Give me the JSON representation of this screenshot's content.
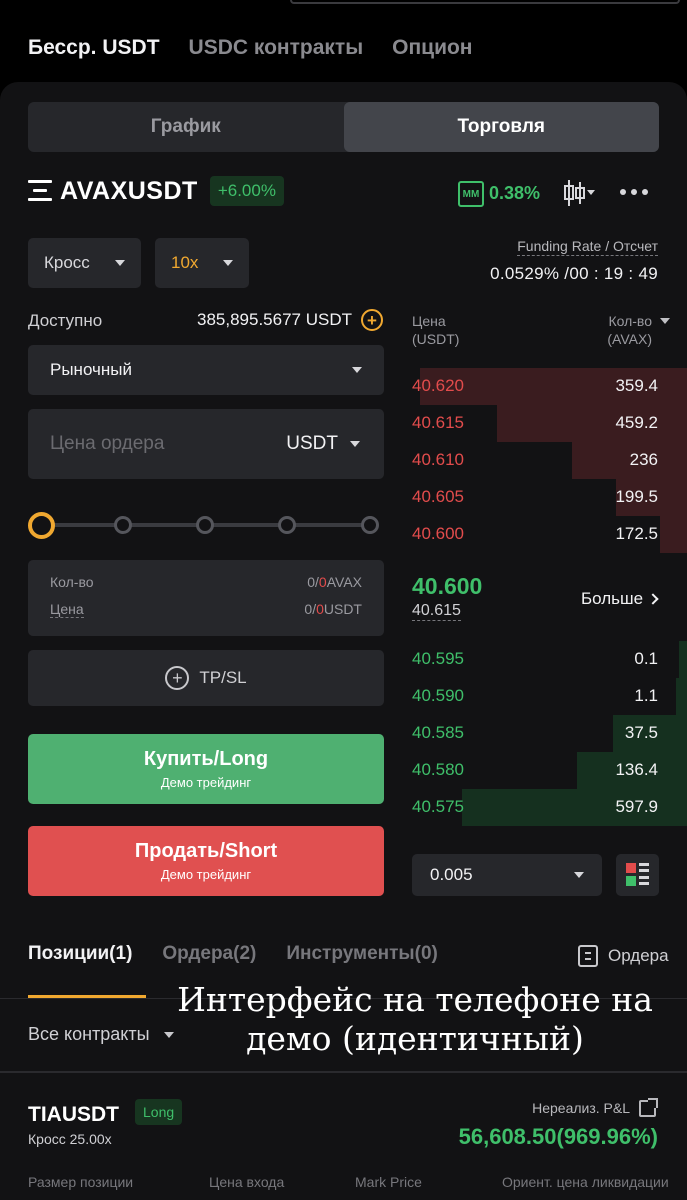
{
  "top_tabs": [
    {
      "label": "Бесср. USDT",
      "active": true
    },
    {
      "label": "USDC контракты",
      "active": false
    },
    {
      "label": "Опцион",
      "active": false
    }
  ],
  "segment": {
    "chart": "График",
    "trade": "Торговля"
  },
  "symbol": {
    "name": "AVAXUSDT",
    "change": "+6.00%"
  },
  "mm": {
    "label": "MM",
    "value": "0.38%"
  },
  "margin_mode": "Кросс",
  "leverage": "10x",
  "funding": {
    "label": "Funding Rate / Отсчет",
    "value": "0.0529% /00 : 19 : 49"
  },
  "available": {
    "label": "Доступно",
    "value": "385,895.5677 USDT"
  },
  "order_type": "Рыночный",
  "order_price": {
    "placeholder": "Цена ордера",
    "unit": "USDT"
  },
  "qty_box": {
    "qty_label": "Кол-во",
    "qty_a": "0",
    "qty_b": "0",
    "qty_unit": "AVAX",
    "price_label": "Цена",
    "price_a": "0",
    "price_b": "0",
    "price_unit": "USDT"
  },
  "tpsl": "TP/SL",
  "buy": {
    "label": "Купить/Long",
    "sub": "Демо трейдинг"
  },
  "sell": {
    "label": "Продать/Short",
    "sub": "Демо трейдинг"
  },
  "orderbook": {
    "price_head": [
      "Цена",
      "(USDT)"
    ],
    "qty_head": [
      "Кол-во",
      "(AVAX)"
    ],
    "asks": [
      {
        "price": "40.620",
        "qty": "359.4",
        "depth": 0.97
      },
      {
        "price": "40.615",
        "qty": "459.2",
        "depth": 0.69
      },
      {
        "price": "40.610",
        "qty": "236",
        "depth": 0.42
      },
      {
        "price": "40.605",
        "qty": "199.5",
        "depth": 0.26
      },
      {
        "price": "40.600",
        "qty": "172.5",
        "depth": 0.1
      }
    ],
    "mid_price": "40.600",
    "mark_price": "40.615",
    "more": "Больше",
    "bids": [
      {
        "price": "40.595",
        "qty": "0.1",
        "depth": 0.03
      },
      {
        "price": "40.590",
        "qty": "1.1",
        "depth": 0.04
      },
      {
        "price": "40.585",
        "qty": "37.5",
        "depth": 0.27
      },
      {
        "price": "40.580",
        "qty": "136.4",
        "depth": 0.4
      },
      {
        "price": "40.575",
        "qty": "597.9",
        "depth": 0.82
      }
    ],
    "depth_step": "0.005"
  },
  "position_tabs": [
    {
      "label": "Позиции(1)",
      "active": true
    },
    {
      "label": "Ордера(2)",
      "active": false
    },
    {
      "label": "Инструменты(0)",
      "active": false
    }
  ],
  "orders_link": "Ордера",
  "all_contracts": "Все контракты",
  "overlay_caption": [
    "Интерфейс на телефоне на",
    "демо (идентичный)"
  ],
  "position": {
    "symbol": "TIAUSDT",
    "side": "Long",
    "margin": "Кросс 25.00x",
    "pnl_label": "Нереализ. P&L",
    "pnl_value": "56,608.50(969.96%)",
    "columns": [
      "Размер позиции",
      "Цена входа",
      "Mark Price",
      "Ориент. цена ликвидации"
    ]
  },
  "colors": {
    "accent": "#f0a830",
    "buy": "#4fb071",
    "sell": "#e05050",
    "green_text": "#3fbf6a",
    "red_text": "#e24c4c"
  }
}
